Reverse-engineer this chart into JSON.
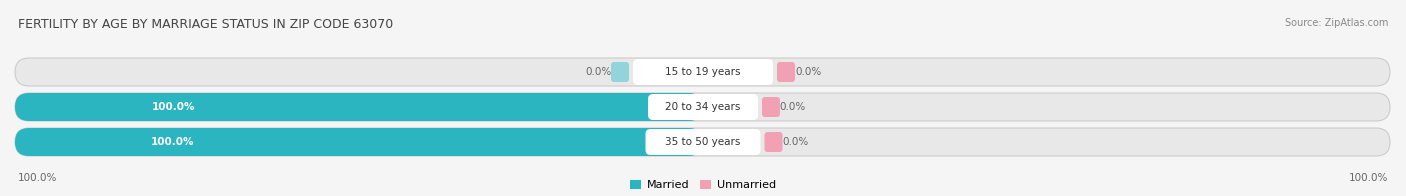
{
  "title": "FERTILITY BY AGE BY MARRIAGE STATUS IN ZIP CODE 63070",
  "source": "Source: ZipAtlas.com",
  "categories": [
    "15 to 19 years",
    "20 to 34 years",
    "35 to 50 years"
  ],
  "married_values": [
    0.0,
    100.0,
    100.0
  ],
  "unmarried_values": [
    0.0,
    0.0,
    0.0
  ],
  "married_color": "#2BB5C0",
  "married_color_light": "#92D4DA",
  "unmarried_color": "#F2A0B4",
  "bar_bg_color": "#E8E8E8",
  "bar_border_color": "#CCCCCC",
  "fig_bg_color": "#F5F5F5",
  "title_color": "#444444",
  "source_color": "#888888",
  "label_color_dark": "#333333",
  "label_color_white": "#FFFFFF",
  "label_color_gray": "#666666",
  "legend_married": "Married",
  "legend_unmarried": "Unmarried",
  "bottom_left_label": "100.0%",
  "bottom_right_label": "100.0%",
  "figsize": [
    14.06,
    1.96
  ],
  "dpi": 100
}
